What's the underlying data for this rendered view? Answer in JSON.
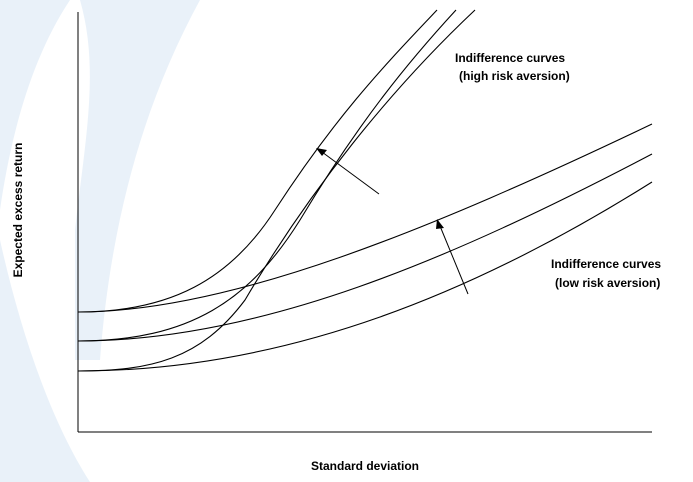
{
  "diagram": {
    "x_axis_label": "Standard deviation",
    "y_axis_label": "Expected excess return",
    "annotations": {
      "high": {
        "line1": "Indifference curves",
        "line2": "(high risk aversion)"
      },
      "low": {
        "line1": "Indifference curves",
        "line2": "(low risk aversion)"
      }
    },
    "curve_groups": [
      {
        "name": "high risk aversion",
        "curve_count": 3
      },
      {
        "name": "low risk aversion",
        "curve_count": 3
      }
    ]
  },
  "colors": {
    "ink": "#000000",
    "watermark": "#cfe0f1",
    "background": "#ffffff"
  }
}
